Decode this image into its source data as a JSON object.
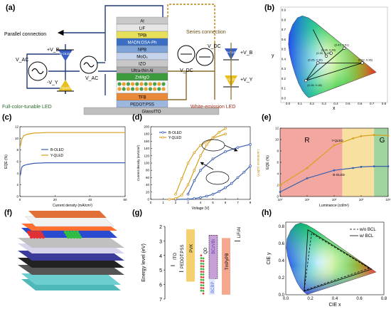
{
  "panels": {
    "a": "(a)",
    "b": "(b)",
    "c": "(c)",
    "d": "(d)",
    "e": "(e)",
    "f": "(f)",
    "g": "(g)",
    "h": "(h)"
  },
  "panel_a": {
    "layers": [
      {
        "label": "Al",
        "color": "#c9c9c9"
      },
      {
        "label": "LiF",
        "color": "#e6e6e6"
      },
      {
        "label": "TPBi",
        "color": "#e8e05a"
      },
      {
        "label": "MADN:DSA-Ph",
        "color": "#3b6fc4"
      },
      {
        "label": "NPB",
        "color": "#7fa4d8"
      },
      {
        "label": "MoO₃",
        "color": "#c4d3ea"
      },
      {
        "label": "IZO",
        "color": "#c8c8c8"
      },
      {
        "label": "Ultra-thin Al",
        "color": "#aaaaaa"
      },
      {
        "label": "ZnMgO",
        "color": "#3c9b3c"
      },
      {
        "label": "",
        "color": "#f7f7f7"
      },
      {
        "label": "TFB",
        "color": "#e98a3a"
      },
      {
        "label": "PEDOT:PSS",
        "color": "#9db7df"
      },
      {
        "label": "Glass/ITO",
        "color": "#bfbfbf"
      }
    ],
    "parallel": "Parallel connection",
    "series": "Series connection",
    "full_color": "Full-color-tunable LED",
    "white": "White-emission LED",
    "vac": "V_AC",
    "vdc": "V_DC",
    "b_oled": "B-OLED",
    "y_qled": "Y-QLED",
    "vb": "+V_B",
    "vy": "-V_Y",
    "vb_series": "+V_B",
    "vy_series": "+V_Y"
  },
  "panel_b": {
    "xlabel": "x",
    "ylabel": "y",
    "ticks_x": [
      "0.0",
      "0.1",
      "0.2",
      "0.3",
      "0.4",
      "0.5",
      "0.6",
      "0.7",
      "0.8"
    ],
    "ticks_y": [
      "0.0",
      "0.1",
      "0.2",
      "0.3",
      "0.4",
      "0.5",
      "0.6",
      "0.7",
      "0.8",
      "0.9"
    ],
    "points": [
      {
        "label": "(0.25, 0.36)",
        "x": 0.25,
        "y": 0.36
      },
      {
        "label": "(0.32, 0.43)",
        "x": 0.32,
        "y": 0.43
      },
      {
        "label": "(0.36, 0.46)",
        "x": 0.36,
        "y": 0.46
      },
      {
        "label": "(0.15, 0.18)",
        "x": 0.15,
        "y": 0.18
      },
      {
        "label": "(0.47, 0.51)",
        "x": 0.47,
        "y": 0.51
      },
      {
        "label": "(0.62, 0.36)",
        "x": 0.62,
        "y": 0.36
      }
    ]
  },
  "panel_c": {
    "xlabel": "Current density (mA/cm²)",
    "ylabel": "EQE (%)",
    "xticks": [
      "0",
      "20",
      "40",
      "60"
    ],
    "yticks": [
      "0",
      "2",
      "4",
      "6",
      "8",
      "10",
      "12"
    ],
    "legend": [
      "B-OLED",
      "Y-QLED"
    ]
  },
  "chart_data": [
    {
      "type": "line",
      "xlabel": "Current density (mA/cm²)",
      "ylabel": "EQE (%)",
      "xlim": [
        0,
        60
      ],
      "ylim": [
        0,
        12
      ],
      "series": [
        {
          "name": "B-OLED",
          "color": "#3a5fb0",
          "x": [
            0.2,
            1,
            2,
            4,
            8,
            15,
            25,
            40,
            60
          ],
          "y": [
            3.6,
            5.0,
            5.3,
            5.5,
            5.7,
            5.8,
            5.8,
            5.8,
            5.8
          ]
        },
        {
          "name": "Y-QLED",
          "color": "#d8a020",
          "x": [
            0.2,
            1,
            2,
            4,
            8,
            15,
            25,
            40,
            60
          ],
          "y": [
            8.6,
            9.8,
            10.4,
            10.7,
            10.9,
            11.0,
            11.0,
            11.0,
            11.0
          ]
        }
      ]
    },
    {
      "type": "line",
      "xlabel": "Voltage (V)",
      "ylabel": "Current density (mA/cm²)",
      "y2label": "Luminance (cd/m²)",
      "xlim": [
        0,
        8
      ],
      "ylim": [
        0,
        200
      ],
      "y2lim_log": [
        -1,
        6
      ],
      "series": [
        {
          "name": "B-OLED",
          "color": "#3a5fb0",
          "x": [
            2,
            3,
            3.5,
            4,
            4.5,
            5,
            5.5,
            6,
            6.5,
            7,
            7.5,
            8
          ],
          "y": [
            0,
            0.5,
            2,
            5,
            9,
            14,
            22,
            32,
            44,
            60,
            75,
            92
          ]
        },
        {
          "name": "Y-QLED",
          "color": "#d8a020",
          "x": [
            1.5,
            2,
            2.5,
            3,
            3.5,
            4,
            4.5,
            5,
            5.5,
            6
          ],
          "y": [
            0,
            2,
            12,
            40,
            80,
            120,
            150,
            170,
            185,
            195
          ]
        }
      ]
    },
    {
      "type": "line",
      "xlabel": "Luminance (cd/m²)",
      "ylabel": "EQE (%)",
      "xscale": "log",
      "xlim_log": [
        0,
        4
      ],
      "ylim": [
        0,
        12
      ],
      "annotations": [
        "R",
        "G"
      ],
      "series": [
        {
          "name": "Y-QLED",
          "color": "#d8a020",
          "x": [
            1,
            10,
            100,
            500,
            1000,
            3000,
            10000
          ],
          "y": [
            2,
            5,
            9,
            10.2,
            10.6,
            10.8,
            10.7
          ]
        },
        {
          "name": "B-OLED",
          "color": "#3a5fb0",
          "x": [
            1,
            10,
            100,
            500,
            1000,
            3000,
            10000
          ],
          "y": [
            0.8,
            3.2,
            4.6,
            5.0,
            5.2,
            5.3,
            5.3
          ]
        }
      ]
    }
  ],
  "panel_d": {
    "xlabel": "Voltage (V)",
    "ylabel": "Current density (mA/cm²)",
    "y2label": "Luminance (cd/m²)",
    "xticks": [
      "0",
      "1",
      "2",
      "3",
      "4",
      "5",
      "6",
      "7",
      "8"
    ],
    "yticks": [
      "0",
      "20",
      "40",
      "60",
      "80",
      "100",
      "120",
      "140",
      "160",
      "180",
      "200"
    ],
    "legend": [
      "B-OLED",
      "Y-QLED"
    ]
  },
  "panel_e": {
    "xlabel": "Luminance (cd/m²)",
    "ylabel": "EQE (%)",
    "xticks": [
      "10⁰",
      "10¹",
      "10²",
      "10³",
      "10⁴"
    ],
    "yticks": [
      "0",
      "2",
      "4",
      "6",
      "8",
      "10",
      "12"
    ],
    "region_r": "R",
    "region_g": "G",
    "label_y": "Y-QLED",
    "label_b": "B-OLED"
  },
  "panel_g": {
    "ylabel": "Energy level (eV)",
    "yticks": [
      "2",
      "3",
      "4",
      "5",
      "6",
      "7"
    ],
    "materials": [
      "ITO",
      "PEDOT:PSS",
      "PVK",
      "QD",
      "BCzVBi",
      "TmPyPB",
      "LiF/Al",
      "BCBP"
    ]
  },
  "panel_h": {
    "xlabel": "CIE x",
    "ylabel": "CIE y",
    "xticks": [
      "0.0",
      "0.2",
      "0.4",
      "0.6",
      "0.8"
    ],
    "yticks": [
      "0.0",
      "0.2",
      "0.4",
      "0.6",
      "0.8"
    ],
    "legend": [
      "w/o BCL",
      "w/ BCL"
    ]
  }
}
